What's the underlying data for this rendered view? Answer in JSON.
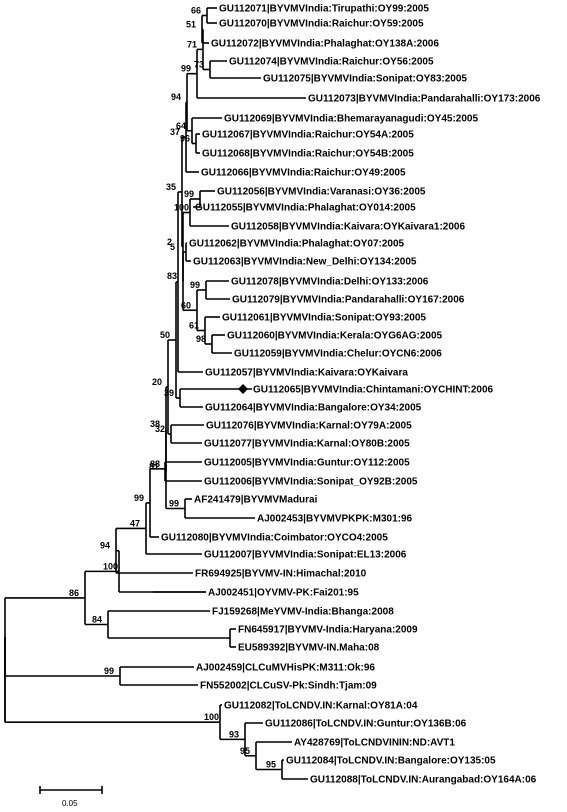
{
  "tree": {
    "taxa": [
      "GU112071|BYVMVIndia:Tirupathi:OY99:2005",
      "GU112070|BYVMVIndia:Raichur:OY59:2005",
      "GU112072|BYVMVIndia:Phalaghat:OY138A:2006",
      "GU112074|BYVMVIndia:Raichur:OY56:2005",
      "GU112075|BYVMVIndia:Sonipat:OY83:2005",
      "GU112073|BYVMVIndia:Pandarahalli:OY173:2006",
      "GU112069|BYVMVIndia:Bhemarayanagudi:OY45:2005",
      "GU112067|BYVMVIndia:Raichur:OY54A:2005",
      "GU112068|BYVMVIndia:Raichur:OY54B:2005",
      "GU112066|BYVMVIndia:Raichur:OY49:2005",
      "GU112056|BYVMVIndia:Varanasi:OY36:2005",
      "GU112055|BYVMVIndia:Phalaghat:OY014:2005",
      "GU112058|BYVMVIndia:Kaivara:OYKaivara1:2006",
      "GU112062|BYVMVIndia:Phalaghat:OY07:2005",
      "GU112063|BYVMVIndia:New_Delhi:OY134:2005",
      "GU112078|BYVMVIndia:Delhi:OY133:2006",
      "GU112079|BYVMVIndia:Pandarahalli:OY167:2006",
      "GU112061|BYVMVIndia:Sonipat:OY93:2005",
      "GU112060|BYVMVIndia:Kerala:OYG6AG:2005",
      "GU112059|BYVMVIndia:Chelur:OYCN6:2006",
      "GU112057|BYVMVIndia:Kaivara:OYKaivara",
      "GU112065|BYVMVIndia:Chintamani:OYCHINT:2006",
      "GU112064|BYVMVIndia:Bangalore:OY34:2005",
      "GU112076|BYVMVIndia:Karnal:OY79A:2005",
      "GU112077|BYVMVIndia:Karnal:OY80B:2005",
      "GU112005|BYVMVIndia:Guntur:OY112:2005",
      "GU112006|BYVMVIndia:Sonipat_OY92B:2005",
      "AF241479|BYVMVMadurai",
      "AJ002453|BYVMVPKPK:M301:96",
      "GU112080|BYVMVIndia:Coimbator:OYCO4:2005",
      "GU112007|BYVMVIndia:Sonipat:EL13:2006",
      "FR694925|BYVMV-IN:Himachal:2010",
      "AJ002451|OYVMV-PK:Fai201:95",
      "FJ159268|MeYVMV-India:Bhanga:2008",
      "FN645917|BYVMV-India:Haryana:2009",
      "EU589392|BYVMV-IN.Maha:08",
      "AJ002459|CLCuMVHisPK:M311:Ok:96",
      "FN552002|CLCuSV-Pk:Sindh:Tjam:09",
      "GU112082|ToLCNDV.IN:Karnal:OY81A:04",
      "GU112086|ToLCNDV.IN:Guntur:OY136B:06",
      "AY428769|ToLCNDVININ:ND:AVT1",
      "GU112084|ToLCNDV.IN:Bangalore:OY135:05",
      "GU112088|ToLCNDV.IN:Aurangabad:OY164A:06"
    ],
    "bootstrap": [
      "66",
      "51",
      "71",
      "99",
      "73",
      "94",
      "37",
      "64",
      "96",
      "35",
      "99",
      "100",
      "2",
      "5",
      "99",
      "83",
      "60",
      "61",
      "98",
      "50",
      "20",
      "39",
      "38",
      "32",
      "88",
      "81",
      "99",
      "99",
      "94",
      "47",
      "86",
      "100",
      "84",
      "99",
      "100",
      "93",
      "95",
      "95"
    ],
    "marker": "black-diamond",
    "scale_bar_label": "0.05"
  }
}
